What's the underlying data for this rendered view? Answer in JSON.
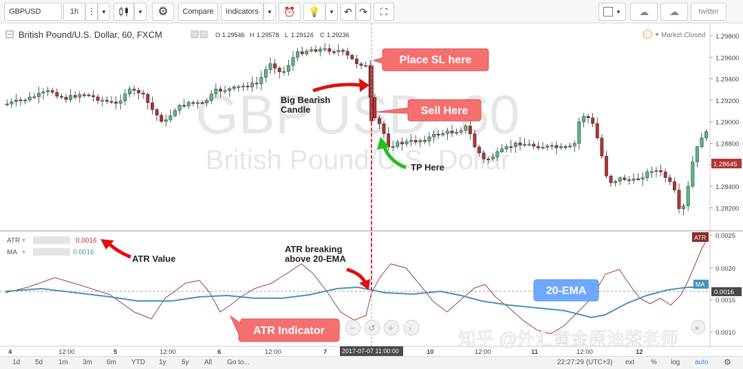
{
  "toolbar": {
    "symbol": "GBPUSD",
    "interval": "1h",
    "compare_label": "Compare",
    "indicators_label": "Indicators",
    "share_label": "twitter"
  },
  "legend": {
    "title": "British Pound/U.S. Dollar, 60, FXCM",
    "open_label": "O",
    "open": "1.29546",
    "high_label": "H",
    "high": "1.29578",
    "low_label": "L",
    "low": "1.29124",
    "close_label": "C",
    "close": "1.29236",
    "market_status": "Market Closed"
  },
  "watermark": {
    "symbol": "GBPUSD, 60",
    "name": "British Pound/U.S. Dollar"
  },
  "price_axis": {
    "labels": [
      "1.29800",
      "1.29600",
      "1.29400",
      "1.29200",
      "1.29000",
      "1.28800",
      "1.28600",
      "1.28400",
      "1.28200"
    ],
    "last_price": "1.28645"
  },
  "atr_axis": {
    "labels": [
      "0.0025",
      "0.0020",
      "0.0015",
      "0.0010"
    ],
    "current": "0.0016",
    "atr_tag": "ATR",
    "ma_tag": "MA"
  },
  "atr_legend": {
    "atr_label": "ATR",
    "atr_value": "0.0016",
    "ma_label": "MA",
    "ma_value": "0.0016"
  },
  "time_axis": {
    "labels": [
      "4",
      "12:00",
      "5",
      "12:00",
      "6",
      "12:00",
      "7",
      "10",
      "12:00",
      "11",
      "12:00",
      "12"
    ],
    "crosshair_time": "2017-07-07 11:00:00"
  },
  "annotations": {
    "place_sl": "Place SL here",
    "sell_here": "Sell Here",
    "big_bearish_line1": "Big Bearish",
    "big_bearish_line2": "Candle",
    "tp_here": "TP Here",
    "atr_value": "ATR Value",
    "atr_breaking_line1": "ATR breaking",
    "atr_breaking_line2": "above 20-EMA",
    "atr_indicator": "ATR Indicator",
    "ema_20": "20-EMA"
  },
  "bottom_bar": {
    "ranges": [
      "1d",
      "5d",
      "1m",
      "3m",
      "6m",
      "YTD",
      "1y",
      "5y",
      "All"
    ],
    "goto": "Go to...",
    "clock": "22:27:29 (UTC+3)",
    "options": [
      "ext",
      "%",
      "log",
      "auto"
    ]
  },
  "source_watermark": "知乎 @外汇黄金原油荣老师",
  "colors": {
    "bull": "#53b987",
    "bear": "#b33333",
    "atr_line": "#9b3b3b",
    "ema_line": "#4a90b8",
    "annotation_red": "#f06060",
    "annotation_blue": "#6fa8ff",
    "price_tag": "#b33333"
  }
}
